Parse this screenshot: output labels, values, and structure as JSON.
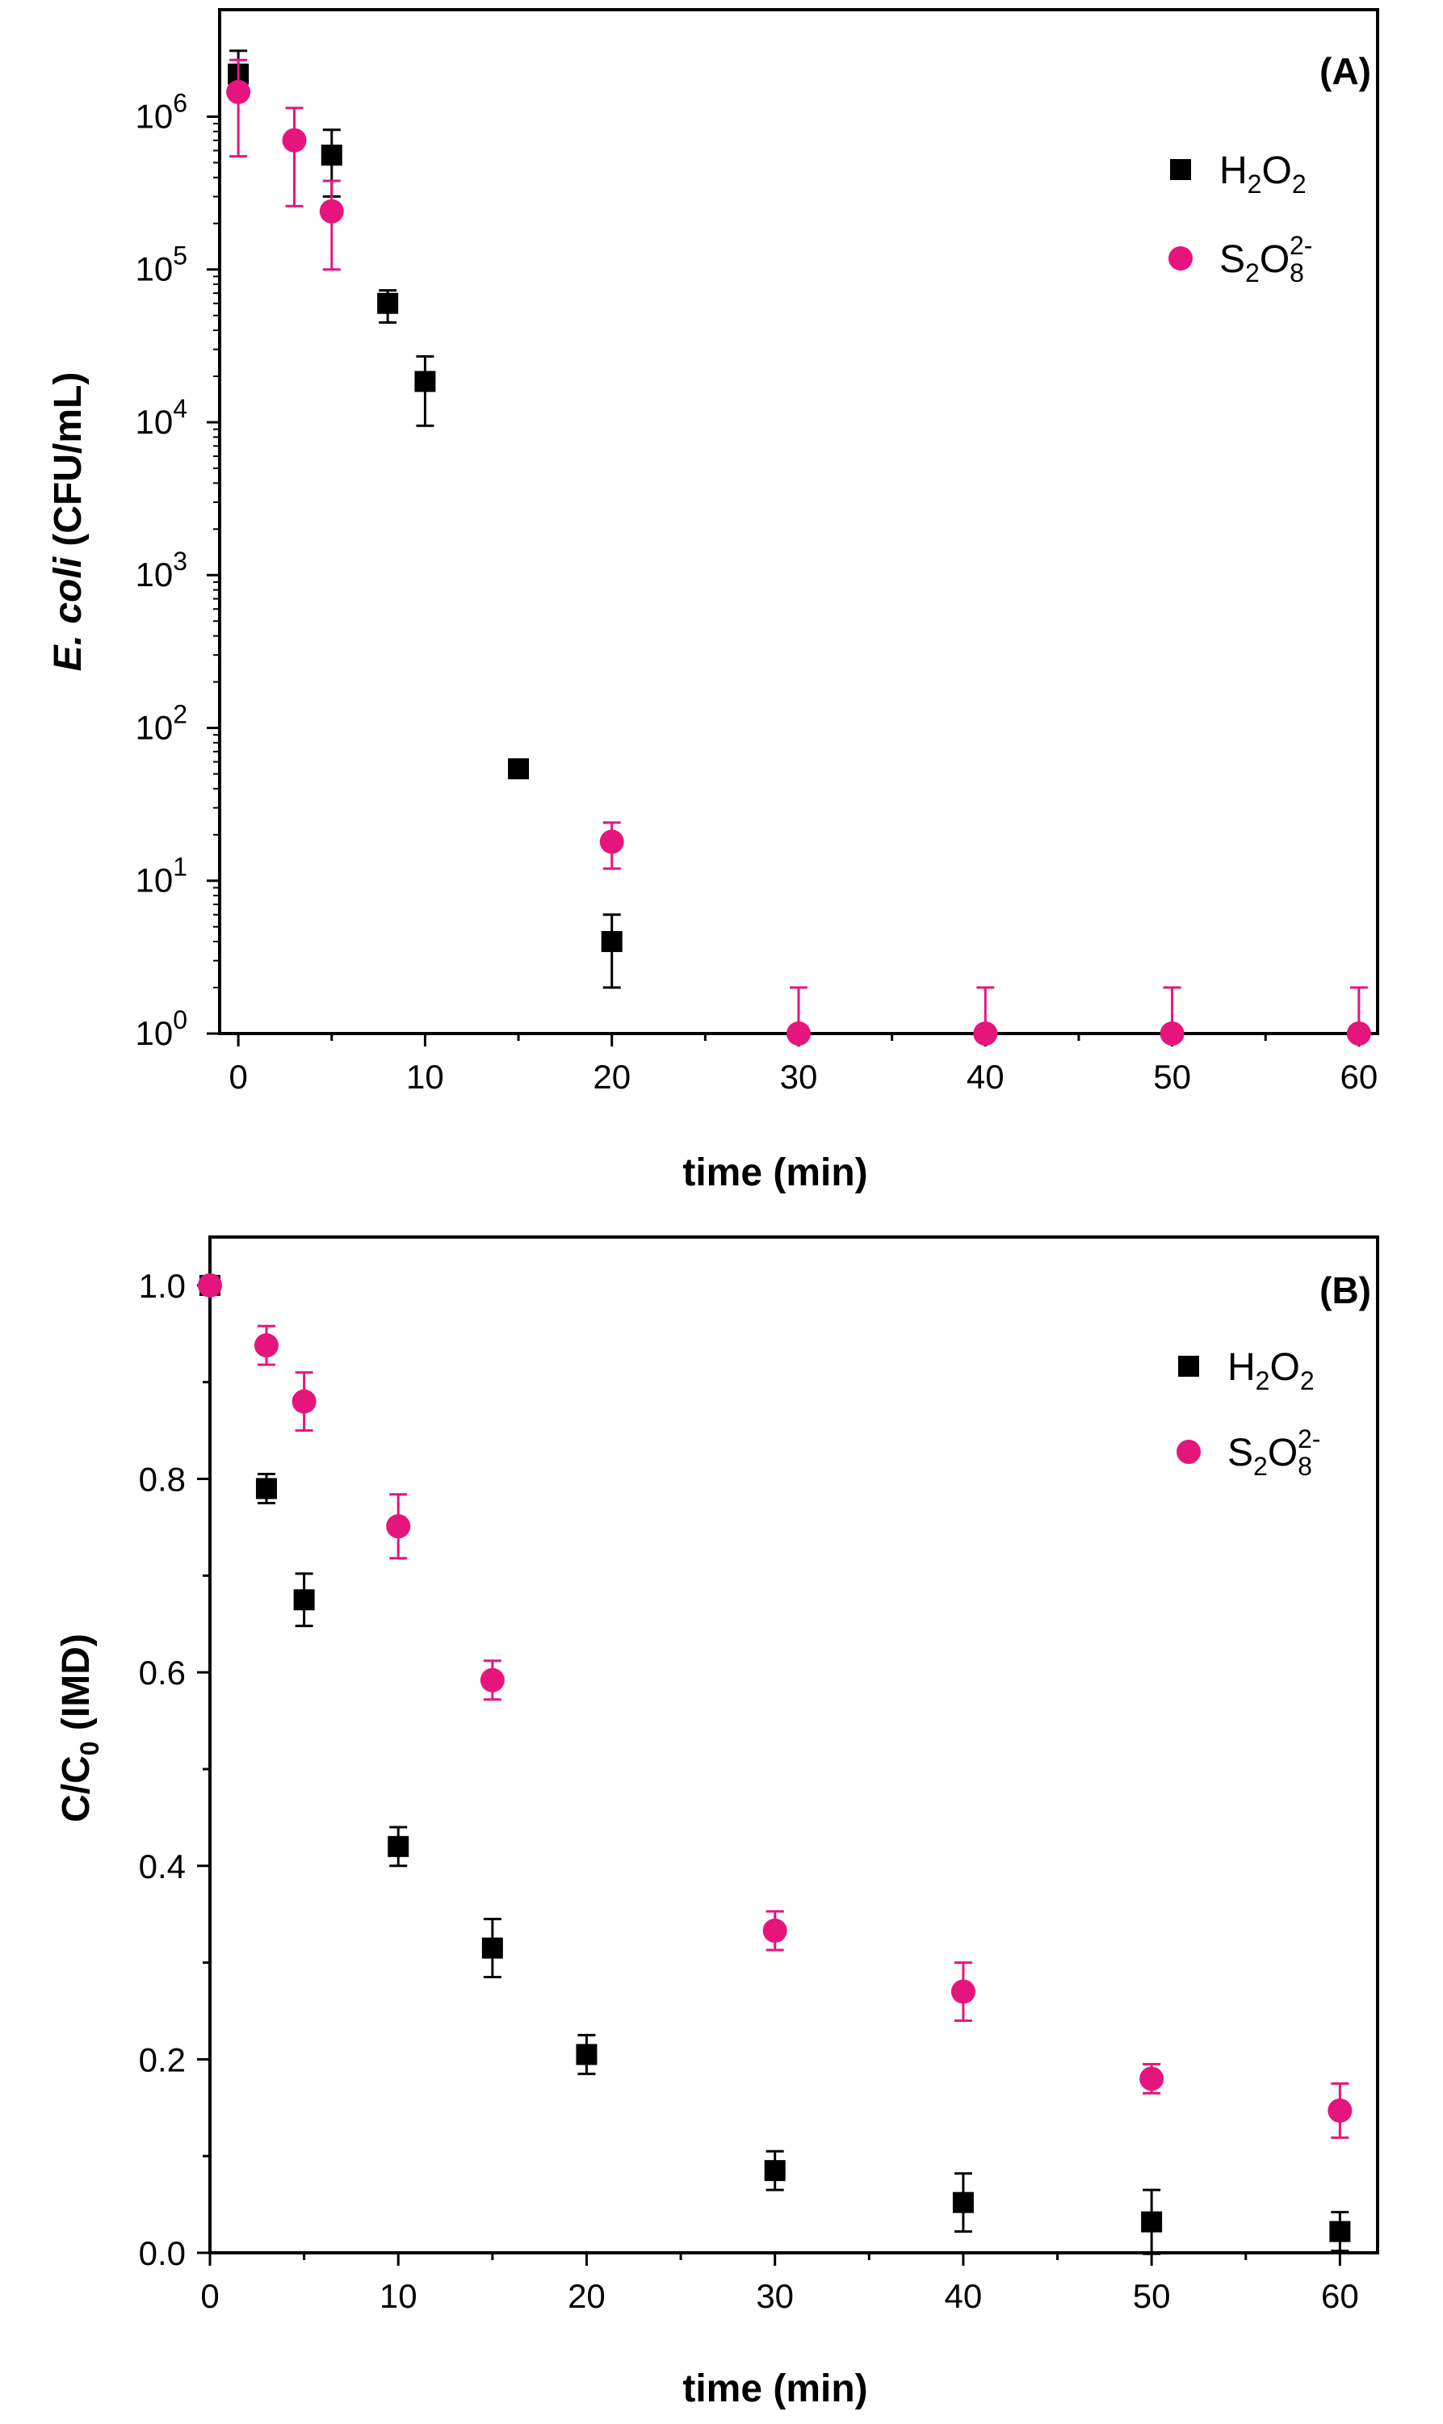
{
  "colors": {
    "h2o2": "#000000",
    "s2o8": "#e6157d",
    "axis": "#000000"
  },
  "chart_data": [
    {
      "id": "A",
      "type": "scatter",
      "panel_label": "(A)",
      "xlabel": "time (min)",
      "ylabel_italic": "E. coli",
      "ylabel_rest": " (CFU/mL)",
      "yscale": "log",
      "xlim": [
        -1,
        61
      ],
      "ylim_log10": [
        0,
        6.7
      ],
      "xticks": [
        0,
        10,
        20,
        30,
        40,
        50,
        60
      ],
      "xtick_labels": [
        "0",
        "10",
        "20",
        "30",
        "40",
        "50",
        "60"
      ],
      "yticks_exp": [
        0,
        1,
        2,
        3,
        4,
        5,
        6
      ],
      "ytick_base": "10",
      "ytick_exps": [
        "0",
        "1",
        "2",
        "3",
        "4",
        "5",
        "6"
      ],
      "legend": {
        "position": "top-right",
        "entries": [
          {
            "series": "h2o2",
            "label": {
              "base1": "H",
              "sub1": "2",
              "base2": "O",
              "sub2": "2",
              "sup": ""
            }
          },
          {
            "series": "s2o8",
            "label": {
              "base1": "S",
              "sub1": "2",
              "base2": "O",
              "sub2": "8",
              "sup": "2-"
            }
          }
        ]
      },
      "series": [
        {
          "key": "h2o2",
          "name": "H2O2",
          "marker": "square",
          "points": [
            {
              "x": 0,
              "y": 1900000,
              "lo": 1300000,
              "hi": 2700000
            },
            {
              "x": 5,
              "y": 560000,
              "lo": 300000,
              "hi": 820000
            },
            {
              "x": 8,
              "y": 60000,
              "lo": 45000,
              "hi": 73000
            },
            {
              "x": 10,
              "y": 18500,
              "lo": 9500,
              "hi": 27000
            },
            {
              "x": 15,
              "y": 54,
              "lo": 54,
              "hi": 54
            },
            {
              "x": 20,
              "y": 4,
              "lo": 2,
              "hi": 6
            }
          ]
        },
        {
          "key": "s2o8",
          "name": "S2O8 2-",
          "marker": "circle",
          "points": [
            {
              "x": 0,
              "y": 1450000,
              "lo": 550000,
              "hi": 2350000
            },
            {
              "x": 3,
              "y": 700000,
              "lo": 260000,
              "hi": 1140000
            },
            {
              "x": 5,
              "y": 240000,
              "lo": 100000,
              "hi": 380000
            },
            {
              "x": 20,
              "y": 18,
              "lo": 12,
              "hi": 24
            },
            {
              "x": 30,
              "y": 1,
              "lo": 1,
              "hi": 2
            },
            {
              "x": 40,
              "y": 1,
              "lo": 1,
              "hi": 2
            },
            {
              "x": 50,
              "y": 1,
              "lo": 1,
              "hi": 2
            },
            {
              "x": 60,
              "y": 1,
              "lo": 1,
              "hi": 2
            }
          ]
        }
      ]
    },
    {
      "id": "B",
      "type": "scatter",
      "panel_label": "(B)",
      "xlabel": "time (min)",
      "ylabel_main": "C/C",
      "ylabel_sub": "0",
      "ylabel_rest": " (IMD)",
      "yscale": "linear",
      "xlim": [
        0,
        62
      ],
      "ylim": [
        0,
        1.05
      ],
      "xticks": [
        0,
        10,
        20,
        30,
        40,
        50,
        60
      ],
      "xtick_labels": [
        "0",
        "10",
        "20",
        "30",
        "40",
        "50",
        "60"
      ],
      "yticks": [
        0,
        0.2,
        0.4,
        0.6,
        0.8,
        1.0
      ],
      "ytick_labels": [
        "0.0",
        "0.2",
        "0.4",
        "0.6",
        "0.8",
        "1.0"
      ],
      "legend": {
        "position": "top-right",
        "entries": [
          {
            "series": "h2o2",
            "label": {
              "base1": "H",
              "sub1": "2",
              "base2": "O",
              "sub2": "2",
              "sup": ""
            }
          },
          {
            "series": "s2o8",
            "label": {
              "base1": "S",
              "sub1": "2",
              "base2": "O",
              "sub2": "8",
              "sup": "2-"
            }
          }
        ]
      },
      "series": [
        {
          "key": "h2o2",
          "name": "H2O2",
          "marker": "square",
          "points": [
            {
              "x": 0,
              "y": 1.0,
              "err": 0
            },
            {
              "x": 3,
              "y": 0.79,
              "err": 0.015
            },
            {
              "x": 5,
              "y": 0.675,
              "err": 0.027
            },
            {
              "x": 10,
              "y": 0.42,
              "err": 0.02
            },
            {
              "x": 15,
              "y": 0.315,
              "err": 0.03
            },
            {
              "x": 20,
              "y": 0.205,
              "err": 0.02
            },
            {
              "x": 30,
              "y": 0.085,
              "err": 0.02
            },
            {
              "x": 40,
              "y": 0.052,
              "err": 0.03
            },
            {
              "x": 50,
              "y": 0.032,
              "err": 0.033
            },
            {
              "x": 60,
              "y": 0.022,
              "err": 0.02
            }
          ]
        },
        {
          "key": "s2o8",
          "name": "S2O8 2-",
          "marker": "circle",
          "points": [
            {
              "x": 0,
              "y": 1.0,
              "err": 0
            },
            {
              "x": 3,
              "y": 0.938,
              "err": 0.02
            },
            {
              "x": 5,
              "y": 0.88,
              "err": 0.03
            },
            {
              "x": 10,
              "y": 0.751,
              "err": 0.033
            },
            {
              "x": 15,
              "y": 0.592,
              "err": 0.02
            },
            {
              "x": 30,
              "y": 0.333,
              "err": 0.02
            },
            {
              "x": 40,
              "y": 0.27,
              "err": 0.03
            },
            {
              "x": 50,
              "y": 0.18,
              "err": 0.015
            },
            {
              "x": 60,
              "y": 0.147,
              "err": 0.028
            }
          ]
        }
      ]
    }
  ]
}
